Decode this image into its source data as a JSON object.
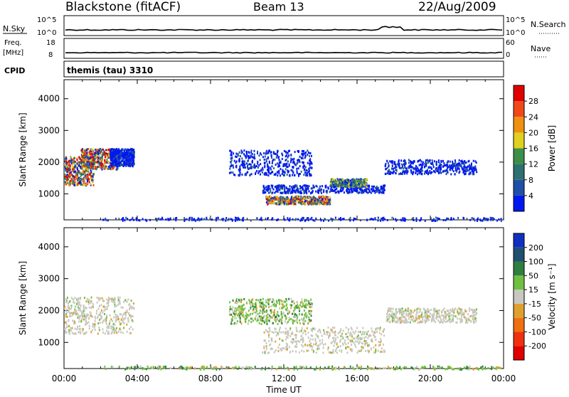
{
  "header": {
    "station": "Blackstone (fitACF)",
    "beam": "Beam 13",
    "date": "22/Aug/2009"
  },
  "strips": {
    "nsky_label": "N.Sky",
    "nsearch_label": "N.Search",
    "freq_label_1": "Freq.",
    "freq_label_2": "[MHz]",
    "nave_label": "Nave",
    "cpid_label": "CPID",
    "cpid_value": "themis (tau) 3310",
    "noise_ticks_left": [
      "10^5",
      "10^0"
    ],
    "noise_ticks_right": [
      "10^5",
      "10^0"
    ],
    "freq_ticks": [
      "18",
      "8"
    ],
    "nave_ticks": [
      "60",
      "0"
    ]
  },
  "chart_data": [
    {
      "type": "heatmap",
      "name": "power",
      "ylabel": "Slant Range [km]",
      "yticks": [
        "1000",
        "2000",
        "3000",
        "4000"
      ],
      "ylim": [
        180,
        4600
      ],
      "xlim": [
        0,
        24
      ],
      "colorbar": {
        "label": "Power [dB]",
        "ticks": [
          "4",
          "8",
          "12",
          "16",
          "20",
          "24",
          "28"
        ],
        "colors": [
          "#0018f0",
          "#1f4fa8",
          "#2f7070",
          "#3c8f4a",
          "#e0d020",
          "#f09010",
          "#f04818",
          "#e00000"
        ]
      },
      "echo_regions": [
        {
          "t": [
            0.0,
            1.6
          ],
          "r": [
            1300,
            2200
          ],
          "level": "high"
        },
        {
          "t": [
            0.9,
            2.9
          ],
          "r": [
            1800,
            2450
          ],
          "level": "high"
        },
        {
          "t": [
            2.5,
            3.8
          ],
          "r": [
            1900,
            2450
          ],
          "level": "low"
        },
        {
          "t": [
            11.0,
            14.5
          ],
          "r": [
            700,
            950
          ],
          "level": "high"
        },
        {
          "t": [
            10.8,
            17.5
          ],
          "r": [
            1050,
            1300
          ],
          "level": "low"
        },
        {
          "t": [
            14.5,
            16.5
          ],
          "r": [
            1250,
            1500
          ],
          "level": "mid"
        },
        {
          "t": [
            9.0,
            13.5
          ],
          "r": [
            1600,
            2400
          ],
          "level": "low"
        },
        {
          "t": [
            17.5,
            22.5
          ],
          "r": [
            1650,
            2100
          ],
          "level": "low"
        },
        {
          "t": [
            2.0,
            24.0
          ],
          "r": [
            180,
            280
          ],
          "level": "low"
        }
      ]
    },
    {
      "type": "heatmap",
      "name": "velocity",
      "ylabel": "Slant Range [km]",
      "yticks": [
        "1000",
        "2000",
        "3000",
        "4000"
      ],
      "ylim": [
        180,
        4600
      ],
      "xlim": [
        0,
        24
      ],
      "xticks": [
        "00:00",
        "04:00",
        "08:00",
        "12:00",
        "16:00",
        "20:00",
        "00:00"
      ],
      "xlabel": "Time UT",
      "colorbar": {
        "label": "Velocity [m s⁻¹]",
        "ticks": [
          "200",
          "100",
          "50",
          "15",
          "-15",
          "-50",
          "-100",
          "-200"
        ],
        "colors": [
          "#1030c0",
          "#205070",
          "#2f7f3f",
          "#70c040",
          "#c8c8c0",
          "#e0a030",
          "#f07010",
          "#f03010",
          "#e00000"
        ]
      },
      "echo_regions": [
        {
          "t": [
            0.0,
            3.8
          ],
          "r": [
            1300,
            2450
          ],
          "level": "ground"
        },
        {
          "t": [
            10.8,
            17.5
          ],
          "r": [
            700,
            1500
          ],
          "level": "ground"
        },
        {
          "t": [
            17.5,
            22.5
          ],
          "r": [
            1650,
            2100
          ],
          "level": "ground"
        },
        {
          "t": [
            9.0,
            13.5
          ],
          "r": [
            1600,
            2400
          ],
          "level": "mixed"
        },
        {
          "t": [
            2.0,
            24.0
          ],
          "r": [
            180,
            280
          ],
          "level": "mixed"
        }
      ]
    }
  ]
}
